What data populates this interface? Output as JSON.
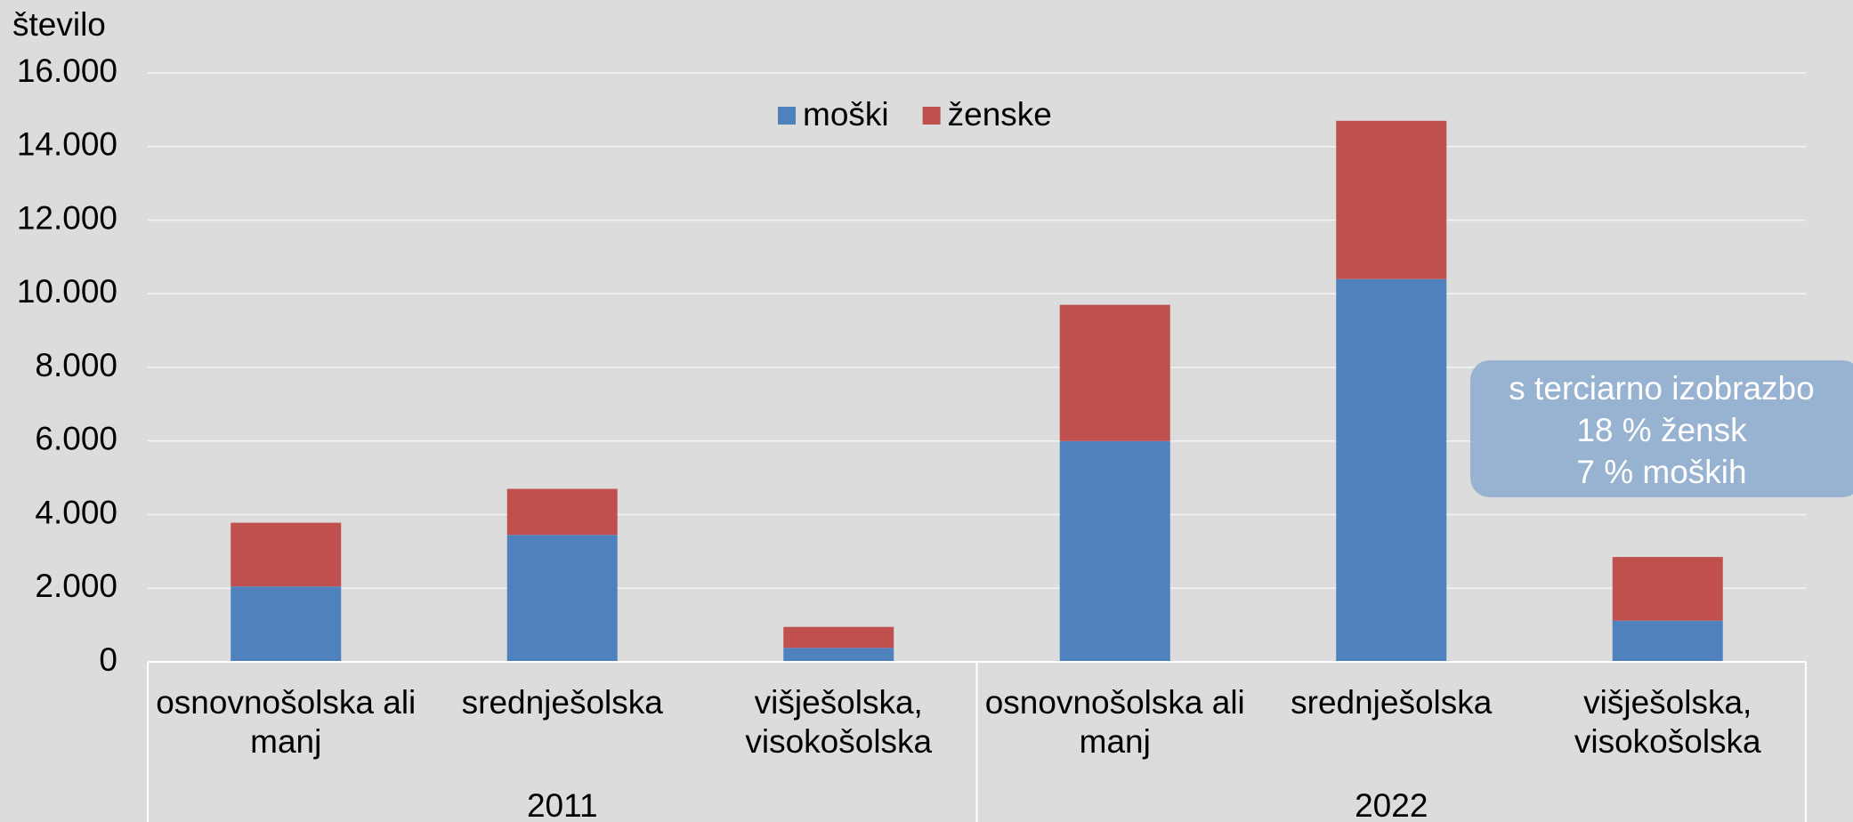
{
  "chart_data": {
    "type": "stacked_bar",
    "y_label": "število",
    "groups": [
      {
        "label": "2011",
        "categories": [
          "osnovnošolska ali manj",
          "srednješolska",
          "višješolska, visokošolska"
        ]
      },
      {
        "label": "2022",
        "categories": [
          "osnovnošolska ali manj",
          "srednješolska",
          "višješolska, visokošolska"
        ]
      }
    ],
    "series": [
      {
        "name": "moški",
        "color": "#4f81bd",
        "values": [
          2050,
          3450,
          380,
          6000,
          10400,
          1120
        ]
      },
      {
        "name": "ženske",
        "color": "#c0504d",
        "values": [
          1730,
          1250,
          570,
          3700,
          4300,
          1730
        ]
      }
    ],
    "ylim": [
      0,
      16000
    ],
    "yticks": [
      {
        "value": 0,
        "label": "0"
      },
      {
        "value": 2000,
        "label": "2.000"
      },
      {
        "value": 4000,
        "label": "4.000"
      },
      {
        "value": 6000,
        "label": "6.000"
      },
      {
        "value": 8000,
        "label": "8.000"
      },
      {
        "value": 10000,
        "label": "10.000"
      },
      {
        "value": 12000,
        "label": "12.000"
      },
      {
        "value": 14000,
        "label": "14.000"
      },
      {
        "value": 16000,
        "label": "16.000"
      }
    ],
    "grid": true,
    "legend": "top",
    "annotation": [
      "s terciarno izobrazbo",
      "18 % žensk",
      "7 % moških"
    ]
  }
}
